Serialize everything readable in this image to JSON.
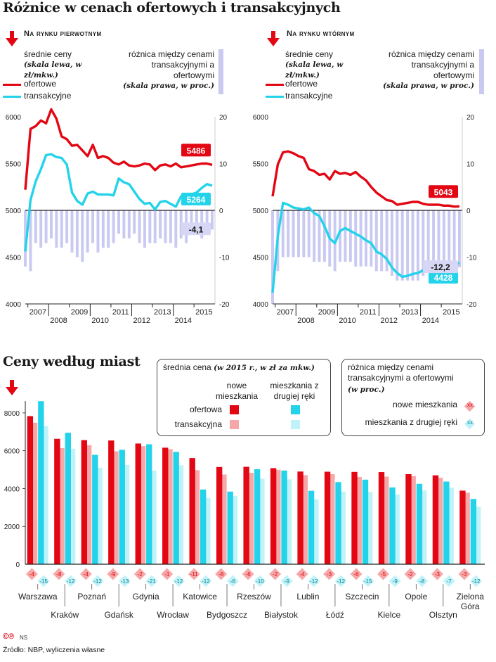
{
  "titles": {
    "main": "Różnice w cenach ofertowych i transakcyjnych",
    "cities": "Ceny według miast"
  },
  "colors": {
    "offer": "#e30613",
    "transaction": "#22d3ea",
    "diff": "#c9c9f2",
    "primary_light": "#f6a8a8",
    "secondary_light": "#bff3f9"
  },
  "panels": {
    "left": {
      "title": "Na rynku pierwotnym",
      "legend_avg_label": "średnie ceny",
      "legend_avg_note": "(skala lewa, w zł/mkw.)",
      "legend_offer": "ofertowe",
      "legend_trans": "transakcyjne",
      "legend_diff_label": "różnica między cenami transakcyjnymi a ofertowymi",
      "legend_diff_note": "(skala prawa, w proc.)",
      "label_offer": "5486",
      "label_trans": "5264",
      "label_diff": "-4,1"
    },
    "right": {
      "title": "Na rynku wtórnym",
      "legend_avg_label": "średnie ceny",
      "legend_avg_note": "(skala lewa, w zł/mkw.)",
      "legend_offer": "ofertowe",
      "legend_trans": "transakcyjne",
      "legend_diff_label": "różnica między cenami transakcyjnymi a ofertowymi",
      "legend_diff_note": "(skala prawa, w proc.)",
      "label_offer": "5043",
      "label_trans": "4428",
      "label_diff": "-12,2"
    }
  },
  "city_legend": {
    "avg_label": "średnia cena",
    "avg_note": "(w 2015 r., w zł za mkw.)",
    "col_primary": "nowe mieszkania",
    "col_secondary": "mieszkania z drugiej ręki",
    "row_offer": "ofertowa",
    "row_trans": "transakcyjna",
    "diff_label": "różnica między cenami transakcyjnymi a ofertowymi",
    "diff_note": "(w proc.)",
    "diff_primary": "nowe mieszkania",
    "diff_secondary": "mieszkania z drugiej ręki",
    "diff_marker": "xx"
  },
  "footer": {
    "logo": "©℗",
    "initials": "NS",
    "source": "Źródło: NBP, wyliczenia własne"
  },
  "chart_data": [
    {
      "type": "line",
      "title": "Na rynku pierwotnym",
      "x": [
        "2006Q3",
        "2006Q4",
        "2007Q1",
        "2007Q2",
        "2007Q3",
        "2007Q4",
        "2008Q1",
        "2008Q2",
        "2008Q3",
        "2008Q4",
        "2009Q1",
        "2009Q2",
        "2009Q3",
        "2009Q4",
        "2010Q1",
        "2010Q2",
        "2010Q3",
        "2010Q4",
        "2011Q1",
        "2011Q2",
        "2011Q3",
        "2011Q4",
        "2012Q1",
        "2012Q2",
        "2012Q3",
        "2012Q4",
        "2013Q1",
        "2013Q2",
        "2013Q3",
        "2013Q4",
        "2014Q1",
        "2014Q2",
        "2014Q3",
        "2014Q4",
        "2015Q1",
        "2015Q2",
        "2015Q3"
      ],
      "x_tick_labels": [
        "2007",
        "2008",
        "2009",
        "2010",
        "2011",
        "2012",
        "2013",
        "2014",
        "2015"
      ],
      "y_left_range": [
        4000,
        6000
      ],
      "y_left_ticks": [
        4000,
        4500,
        5000,
        5500,
        6000
      ],
      "y_right_range": [
        -20,
        20
      ],
      "y_right_ticks": [
        -20,
        -10,
        0,
        10,
        20
      ],
      "series": [
        {
          "name": "ofertowe",
          "axis": "left",
          "values": [
            5220,
            5870,
            5900,
            5960,
            5930,
            6080,
            5980,
            5790,
            5760,
            5690,
            5700,
            5640,
            5580,
            5700,
            5560,
            5580,
            5560,
            5510,
            5490,
            5520,
            5480,
            5470,
            5480,
            5500,
            5490,
            5430,
            5480,
            5490,
            5470,
            5500,
            5460,
            5470,
            5480,
            5490,
            5500,
            5500,
            5486
          ]
        },
        {
          "name": "transakcyjne",
          "axis": "left",
          "values": [
            4560,
            5110,
            5310,
            5440,
            5590,
            5600,
            5570,
            5560,
            5490,
            5190,
            5100,
            5060,
            5180,
            5200,
            5170,
            5170,
            5170,
            5160,
            5340,
            5300,
            5280,
            5200,
            5120,
            5070,
            5080,
            5010,
            5090,
            5100,
            5070,
            5040,
            5150,
            5100,
            5170,
            5190,
            5240,
            5280,
            5264
          ]
        },
        {
          "name": "różnica",
          "axis": "right",
          "type": "bar",
          "values": [
            -12,
            -13,
            -7,
            -8,
            -7,
            -6,
            -8,
            -8,
            -7,
            -9,
            -10,
            -11,
            -9,
            -7,
            -9,
            -8,
            -8,
            -7,
            -5,
            -6,
            -6,
            -5,
            -7,
            -8,
            -7,
            -7,
            -6,
            -7,
            -7,
            -8,
            -6,
            -7,
            -5,
            -5,
            -6,
            -4,
            -4.1
          ]
        }
      ]
    },
    {
      "type": "line",
      "title": "Na rynku wtórnym",
      "x": [
        "2006Q3",
        "2006Q4",
        "2007Q1",
        "2007Q2",
        "2007Q3",
        "2007Q4",
        "2008Q1",
        "2008Q2",
        "2008Q3",
        "2008Q4",
        "2009Q1",
        "2009Q2",
        "2009Q3",
        "2009Q4",
        "2010Q1",
        "2010Q2",
        "2010Q3",
        "2010Q4",
        "2011Q1",
        "2011Q2",
        "2011Q3",
        "2011Q4",
        "2012Q1",
        "2012Q2",
        "2012Q3",
        "2012Q4",
        "2013Q1",
        "2013Q2",
        "2013Q3",
        "2013Q4",
        "2014Q1",
        "2014Q2",
        "2014Q3",
        "2014Q4",
        "2015Q1",
        "2015Q2",
        "2015Q3"
      ],
      "x_tick_labels": [
        "2007",
        "2008",
        "2009",
        "2010",
        "2011",
        "2012",
        "2013",
        "2014",
        "2015"
      ],
      "y_left_range": [
        4000,
        6000
      ],
      "y_left_ticks": [
        4000,
        4500,
        5000,
        5500,
        6000
      ],
      "y_right_range": [
        -20,
        20
      ],
      "y_right_ticks": [
        -20,
        -10,
        0,
        10,
        20
      ],
      "series": [
        {
          "name": "ofertowe",
          "axis": "left",
          "values": [
            5150,
            5490,
            5620,
            5630,
            5610,
            5580,
            5560,
            5440,
            5420,
            5380,
            5390,
            5330,
            5420,
            5390,
            5400,
            5380,
            5410,
            5360,
            5320,
            5250,
            5190,
            5150,
            5110,
            5100,
            5060,
            5070,
            5080,
            5090,
            5090,
            5070,
            5060,
            5060,
            5060,
            5050,
            5050,
            5040,
            5043
          ]
        },
        {
          "name": "transakcyjne",
          "axis": "left",
          "values": [
            4120,
            4720,
            5080,
            5060,
            5030,
            5020,
            5010,
            5030,
            4970,
            4940,
            4830,
            4700,
            4650,
            4780,
            4810,
            4780,
            4750,
            4720,
            4680,
            4650,
            4560,
            4530,
            4480,
            4390,
            4330,
            4290,
            4300,
            4320,
            4330,
            4360,
            4380,
            4400,
            4390,
            4420,
            4440,
            4450,
            4428
          ]
        },
        {
          "name": "różnica",
          "axis": "right",
          "type": "bar",
          "values": [
            -20,
            -13,
            -10,
            -10,
            -10,
            -10,
            -10,
            -10,
            -11,
            -11,
            -11,
            -12,
            -13,
            -11,
            -11,
            -11,
            -12,
            -12,
            -12,
            -12,
            -13,
            -13,
            -13,
            -14,
            -15,
            -15,
            -15,
            -15,
            -15,
            -14,
            -13,
            -13,
            -13,
            -13,
            -12,
            -12,
            -12.2
          ]
        }
      ]
    },
    {
      "type": "bar",
      "title": "Ceny według miast",
      "categories": [
        "Warszawa",
        "Kraków",
        "Poznań",
        "Gdańsk",
        "Gdynia",
        "Wrocław",
        "Katowice",
        "Bydgoszcz",
        "Rzeszów",
        "Białystok",
        "Lublin",
        "Łódź",
        "Szczecin",
        "Kielce",
        "Opole",
        "Olsztyn",
        "Zielona Góra"
      ],
      "y_range": [
        0,
        9000
      ],
      "y_ticks": [
        0,
        2000,
        4000,
        6000,
        8000
      ],
      "series": [
        {
          "name": "nowe mieszkania ofertowa",
          "values": [
            7830,
            6630,
            6560,
            6540,
            6380,
            6160,
            5610,
            5140,
            5150,
            5080,
            4900,
            4890,
            4880,
            4870,
            4760,
            4700,
            3890
          ]
        },
        {
          "name": "nowe mieszkania transakcyjna",
          "values": [
            7480,
            6140,
            6290,
            5970,
            6240,
            6080,
            4970,
            4740,
            4830,
            4990,
            4710,
            4760,
            4610,
            4630,
            4660,
            4570,
            3780
          ]
        },
        {
          "name": "mieszkania z drugiej ręki ofertowa",
          "values": [
            8620,
            6950,
            5780,
            6050,
            6340,
            5940,
            3950,
            3840,
            5020,
            4950,
            3880,
            4340,
            4470,
            4060,
            4250,
            4370,
            3450
          ]
        },
        {
          "name": "mieszkania z drugiej ręki transakcyjna",
          "values": [
            7300,
            6100,
            5100,
            5250,
            4950,
            5230,
            3500,
            3610,
            4520,
            4490,
            3440,
            3840,
            3820,
            3690,
            3900,
            4050,
            3040
          ]
        }
      ],
      "diff_primary": [
        -4,
        -8,
        -4,
        -9,
        -2,
        -1,
        -11,
        -8,
        -6,
        -2,
        -4,
        -3,
        -6,
        -5,
        -2,
        -3,
        -3
      ],
      "diff_secondary": [
        -15,
        -12,
        -12,
        -13,
        -21,
        -12,
        -12,
        -6,
        -10,
        -9,
        -12,
        -12,
        -15,
        -9,
        -8,
        -7,
        -12
      ]
    }
  ]
}
